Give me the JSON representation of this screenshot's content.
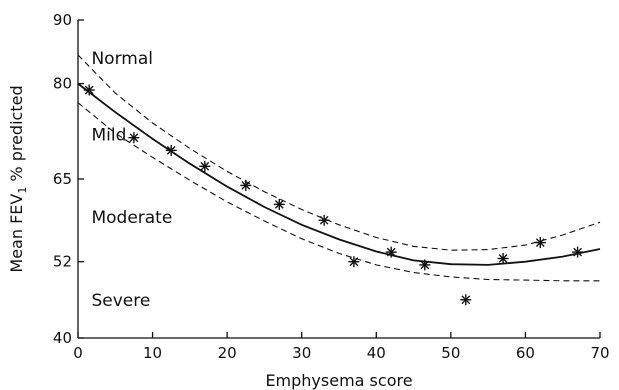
{
  "chart_data": {
    "type": "scatter",
    "title": "",
    "xlabel": "Emphysema score",
    "ylabel_prefix": "Mean FEV",
    "ylabel_subscript": "1",
    "ylabel_suffix": " % predicted",
    "xlim": [
      0,
      70
    ],
    "ylim": [
      40,
      90
    ],
    "xticks": [
      0,
      10,
      20,
      30,
      40,
      50,
      60,
      70
    ],
    "yticks": [
      40,
      52,
      65,
      80,
      90
    ],
    "grid": false,
    "points": [
      {
        "x": 1.5,
        "y": 79
      },
      {
        "x": 7.5,
        "y": 71.5
      },
      {
        "x": 12.5,
        "y": 69.5
      },
      {
        "x": 17,
        "y": 67
      },
      {
        "x": 22.5,
        "y": 64
      },
      {
        "x": 27,
        "y": 61
      },
      {
        "x": 33,
        "y": 58.5
      },
      {
        "x": 37,
        "y": 52
      },
      {
        "x": 42,
        "y": 53.5
      },
      {
        "x": 46.5,
        "y": 51.5
      },
      {
        "x": 52,
        "y": 46
      },
      {
        "x": 57,
        "y": 52.5
      },
      {
        "x": 62,
        "y": 55
      },
      {
        "x": 67,
        "y": 53.5
      }
    ],
    "fit_curve": {
      "style": "solid",
      "points": [
        [
          0,
          80
        ],
        [
          5,
          75.5
        ],
        [
          10,
          71.3
        ],
        [
          15,
          67.4
        ],
        [
          20,
          63.8
        ],
        [
          25,
          60.6
        ],
        [
          30,
          57.8
        ],
        [
          35,
          55.5
        ],
        [
          40,
          53.6
        ],
        [
          45,
          52.2
        ],
        [
          50,
          51.6
        ],
        [
          55,
          51.5
        ],
        [
          60,
          52
        ],
        [
          65,
          52.8
        ],
        [
          70,
          54
        ]
      ]
    },
    "confidence_band": [
      {
        "style": "dashed",
        "points": [
          [
            0,
            84.5
          ],
          [
            5,
            78.5
          ],
          [
            10,
            73.8
          ],
          [
            15,
            69.8
          ],
          [
            20,
            66.2
          ],
          [
            25,
            63
          ],
          [
            30,
            60.2
          ],
          [
            35,
            57.8
          ],
          [
            40,
            55.8
          ],
          [
            45,
            54.4
          ],
          [
            50,
            53.8
          ],
          [
            55,
            53.9
          ],
          [
            60,
            54.6
          ],
          [
            65,
            56.2
          ],
          [
            70,
            58.2
          ]
        ]
      },
      {
        "style": "dashed",
        "points": [
          [
            0,
            77
          ],
          [
            5,
            72.2
          ],
          [
            10,
            68.4
          ],
          [
            15,
            64.8
          ],
          [
            20,
            61.4
          ],
          [
            25,
            58.4
          ],
          [
            30,
            55.6
          ],
          [
            35,
            53.3
          ],
          [
            40,
            51.5
          ],
          [
            45,
            50.3
          ],
          [
            50,
            49.6
          ],
          [
            55,
            49.2
          ],
          [
            60,
            49.1
          ],
          [
            65,
            49
          ],
          [
            70,
            49
          ]
        ]
      }
    ],
    "region_labels": [
      {
        "text": "Normal",
        "x": 1,
        "y": 84
      },
      {
        "text": "Mild",
        "x": 1,
        "y": 72
      },
      {
        "text": "Moderate",
        "x": 1,
        "y": 59
      },
      {
        "text": "Severe",
        "x": 1,
        "y": 46
      }
    ]
  }
}
